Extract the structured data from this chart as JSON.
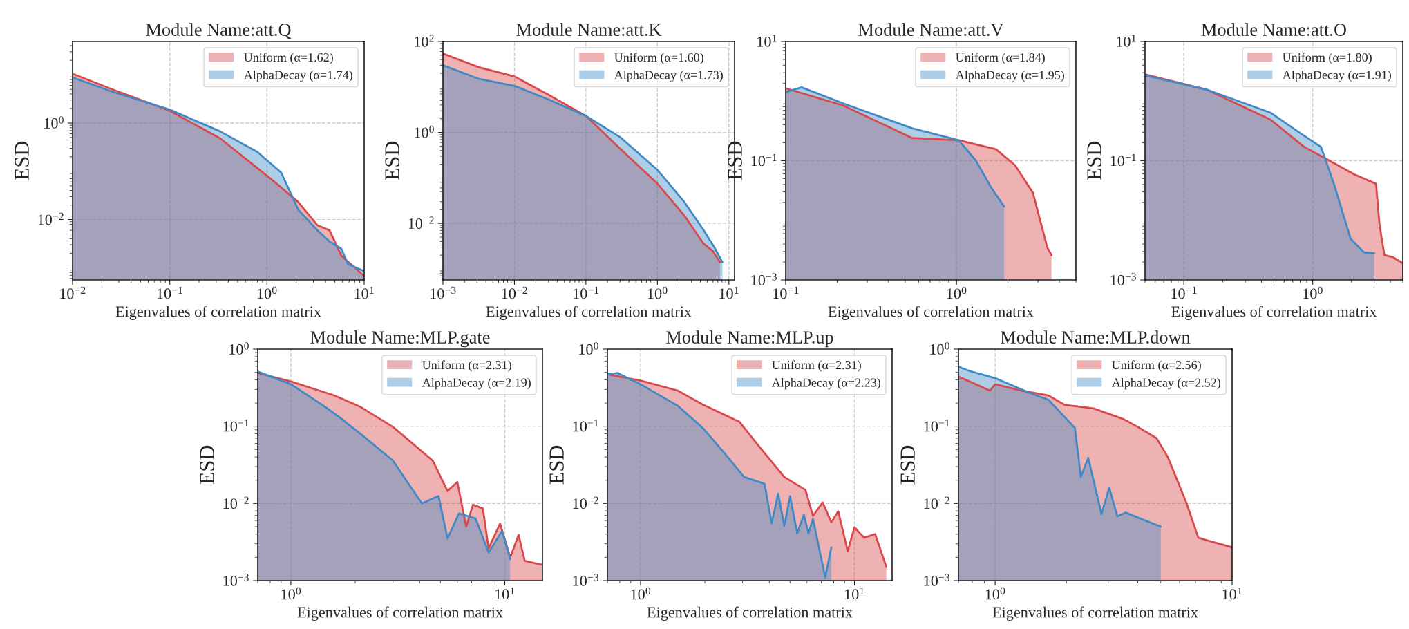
{
  "chart_data": [
    {
      "type": "area",
      "title": "Module Name:att.Q",
      "xlabel": "Eigenvalues of correlation matrix",
      "ylabel": "ESD",
      "log": "xy",
      "grid": true,
      "legend": "top right",
      "xlim": [
        0.01,
        10
      ],
      "ylim": [
        0.00056,
        49
      ],
      "xticks": [
        {
          "value": 0.01,
          "label": "10$^{−2}$"
        },
        {
          "value": 0.1,
          "label": "10$^{−1}$"
        },
        {
          "value": 1,
          "label": "10$^{0}$"
        },
        {
          "value": 10,
          "label": "10$^{1}$"
        }
      ],
      "yticks": [
        {
          "value": 1,
          "label": "10$^{0}$"
        },
        {
          "value": 0.01,
          "label": "10$^{−2}$"
        }
      ],
      "series": [
        {
          "name": "Uniform (α=1.62)",
          "color": "#d9484a",
          "x": [
            0.01,
            0.027,
            0.1,
            0.33,
            0.8,
            1.2,
            2.1,
            3.3,
            4.4,
            5.8,
            10
          ],
          "values": [
            10.5,
            4.8,
            1.8,
            0.48,
            0.116,
            0.06,
            0.023,
            0.0076,
            0.006,
            0.0018,
            0.00067
          ]
        },
        {
          "name": "AlphaDecay (α=1.74)",
          "color": "#3f8ac6",
          "x": [
            0.01,
            0.027,
            0.1,
            0.33,
            0.8,
            1.4,
            2.1,
            3.3,
            4.4,
            5.8,
            6.8,
            10
          ],
          "values": [
            8.8,
            4.3,
            1.9,
            0.67,
            0.25,
            0.094,
            0.016,
            0.006,
            0.0035,
            0.0025,
            0.0012,
            0.00085
          ]
        }
      ]
    },
    {
      "type": "area",
      "title": "Module Name:att.K",
      "xlabel": "Eigenvalues of correlation matrix",
      "ylabel": "ESD",
      "log": "xy",
      "grid": true,
      "legend": "top right",
      "xlim": [
        0.001,
        12
      ],
      "ylim": [
        0.00057,
        100
      ],
      "xticks": [
        {
          "value": 0.001,
          "label": "10$^{−3}$"
        },
        {
          "value": 0.01,
          "label": "10$^{−2}$"
        },
        {
          "value": 0.1,
          "label": "10$^{−1}$"
        },
        {
          "value": 1,
          "label": "10$^{0}$"
        },
        {
          "value": 10,
          "label": "10$^{1}$"
        }
      ],
      "yticks": [
        {
          "value": 100,
          "label": "10$^{2}$"
        },
        {
          "value": 1,
          "label": "10$^{0}$"
        },
        {
          "value": 0.01,
          "label": "10$^{−2}$"
        }
      ],
      "series": [
        {
          "name": "Uniform (α=1.60)",
          "color": "#d9484a",
          "x": [
            0.001,
            0.0032,
            0.01,
            0.031,
            0.1,
            0.3,
            1,
            2.4,
            4.4,
            5.9,
            7.5
          ],
          "values": [
            54,
            27,
            17,
            6.5,
            2.3,
            0.44,
            0.075,
            0.0146,
            0.0036,
            0.0025,
            0.0014
          ]
        },
        {
          "name": "AlphaDecay (α=1.73)",
          "color": "#3f8ac6",
          "x": [
            0.001,
            0.0032,
            0.01,
            0.031,
            0.1,
            0.3,
            1,
            2.4,
            4.4,
            6.4,
            8.1
          ],
          "values": [
            30,
            15,
            10.5,
            5.2,
            2.3,
            0.79,
            0.15,
            0.029,
            0.0072,
            0.0028,
            0.0014
          ]
        }
      ]
    },
    {
      "type": "area",
      "title": "Module Name:att.V",
      "xlabel": "Eigenvalues of correlation matrix",
      "ylabel": "ESD",
      "log": "xy",
      "grid": true,
      "legend": "top right",
      "xlim": [
        0.1,
        5
      ],
      "ylim": [
        0.001,
        10
      ],
      "xticks": [
        {
          "value": 0.1,
          "label": "10$^{−1}$"
        },
        {
          "value": 1,
          "label": "10$^{0}$"
        }
      ],
      "yticks": [
        {
          "value": 10,
          "label": "10$^{1}$"
        },
        {
          "value": 0.1,
          "label": "10$^{−1}$"
        },
        {
          "value": 0.001,
          "label": "10$^{−3}$"
        }
      ],
      "series": [
        {
          "name": "Uniform (α=1.84)",
          "color": "#d9484a",
          "x": [
            0.1,
            0.218,
            0.55,
            1.03,
            1.7,
            2.2,
            2.8,
            3.4,
            3.6
          ],
          "values": [
            1.64,
            0.84,
            0.24,
            0.22,
            0.156,
            0.084,
            0.029,
            0.0035,
            0.0026
          ]
        },
        {
          "name": "AlphaDecay (α=1.95)",
          "color": "#3f8ac6",
          "x": [
            0.1,
            0.124,
            0.218,
            0.55,
            1.03,
            1.3,
            1.6,
            1.9
          ],
          "values": [
            1.42,
            1.7,
            0.91,
            0.35,
            0.22,
            0.1,
            0.035,
            0.017
          ]
        }
      ]
    },
    {
      "type": "area",
      "title": "Module Name:att.O",
      "xlabel": "Eigenvalues of correlation matrix",
      "ylabel": "ESD",
      "log": "xy",
      "grid": true,
      "legend": "top right",
      "xlim": [
        0.05,
        5
      ],
      "ylim": [
        0.001,
        10
      ],
      "xticks": [
        {
          "value": 0.1,
          "label": "10$^{−1}$"
        },
        {
          "value": 1,
          "label": "10$^{0}$"
        }
      ],
      "yticks": [
        {
          "value": 10,
          "label": "10$^{1}$"
        },
        {
          "value": 0.1,
          "label": "10$^{−1}$"
        },
        {
          "value": 0.001,
          "label": "10$^{−3}$"
        }
      ],
      "series": [
        {
          "name": "Uniform (α=1.80)",
          "color": "#d9484a",
          "x": [
            0.05,
            0.15,
            0.47,
            0.86,
            1.25,
            2.1,
            3.1,
            3.3,
            3.6,
            4.2,
            5
          ],
          "values": [
            2.8,
            1.56,
            0.49,
            0.17,
            0.11,
            0.059,
            0.041,
            0.0084,
            0.0026,
            0.0024,
            0.0019
          ]
        },
        {
          "name": "AlphaDecay (α=1.91)",
          "color": "#3f8ac6",
          "x": [
            0.05,
            0.15,
            0.47,
            0.8,
            1.16,
            1.46,
            1.97,
            2.5,
            3.0
          ],
          "values": [
            2.7,
            1.56,
            0.64,
            0.29,
            0.17,
            0.041,
            0.0049,
            0.0029,
            0.0028
          ]
        }
      ]
    },
    {
      "type": "area",
      "title": "Module Name:MLP.gate",
      "xlabel": "Eigenvalues of correlation matrix",
      "ylabel": "ESD",
      "log": "xy",
      "grid": true,
      "legend": "top right",
      "xlim": [
        0.7,
        15
      ],
      "ylim": [
        0.001,
        1
      ],
      "xticks": [
        {
          "value": 1,
          "label": "10$^{0}$"
        },
        {
          "value": 10,
          "label": "10$^{1}$"
        }
      ],
      "yticks": [
        {
          "value": 1,
          "label": "10$^{0}$"
        },
        {
          "value": 0.1,
          "label": "10$^{−1}$"
        },
        {
          "value": 0.01,
          "label": "10$^{−2}$"
        },
        {
          "value": 0.001,
          "label": "10$^{−3}$"
        }
      ],
      "series": [
        {
          "name": "Uniform (α=2.31)",
          "color": "#d9484a",
          "x": [
            0.7,
            1,
            1.6,
            2.1,
            3.0,
            4.6,
            5.4,
            6.0,
            6.6,
            7.1,
            7.9,
            8.4,
            9.5,
            10.6,
            11.6,
            12.4,
            15
          ],
          "values": [
            0.49,
            0.38,
            0.25,
            0.18,
            0.098,
            0.036,
            0.0145,
            0.019,
            0.005,
            0.0096,
            0.0086,
            0.0026,
            0.0055,
            0.002,
            0.0039,
            0.0018,
            0.0016
          ]
        },
        {
          "name": "AlphaDecay (α=2.19)",
          "color": "#3f8ac6",
          "x": [
            0.7,
            1,
            1.4,
            1.65,
            2.1,
            3.0,
            3.5,
            4.1,
            4.9,
            5.4,
            6.1,
            7.3,
            8.4,
            9.7,
            10.6
          ],
          "values": [
            0.51,
            0.35,
            0.19,
            0.137,
            0.081,
            0.036,
            0.019,
            0.01,
            0.0125,
            0.0035,
            0.0074,
            0.0064,
            0.0023,
            0.0044,
            0.0019
          ]
        }
      ]
    },
    {
      "type": "area",
      "title": "Module Name:MLP.up",
      "xlabel": "Eigenvalues of correlation matrix",
      "ylabel": "ESD",
      "log": "xy",
      "grid": true,
      "legend": "top right",
      "xlim": [
        0.7,
        15
      ],
      "ylim": [
        0.001,
        1
      ],
      "xticks": [
        {
          "value": 1,
          "label": "10$^{0}$"
        },
        {
          "value": 10,
          "label": "10$^{1}$"
        }
      ],
      "yticks": [
        {
          "value": 1,
          "label": "10$^{0}$"
        },
        {
          "value": 0.1,
          "label": "10$^{−1}$"
        },
        {
          "value": 0.01,
          "label": "10$^{−2}$"
        },
        {
          "value": 0.001,
          "label": "10$^{−3}$"
        }
      ],
      "series": [
        {
          "name": "Uniform (α=2.31)",
          "color": "#d9484a",
          "x": [
            0.7,
            1,
            1.49,
            1.96,
            2.9,
            3.6,
            4.7,
            5.9,
            6.4,
            7.1,
            7.8,
            8.4,
            9.3,
            10,
            11.1,
            12.5,
            14.1
          ],
          "values": [
            0.47,
            0.39,
            0.29,
            0.19,
            0.114,
            0.054,
            0.022,
            0.015,
            0.0069,
            0.0103,
            0.0057,
            0.0079,
            0.0024,
            0.0049,
            0.0036,
            0.004,
            0.0015
          ]
        },
        {
          "name": "AlphaDecay (α=2.23)",
          "color": "#3f8ac6",
          "x": [
            0.7,
            0.78,
            1,
            1.49,
            1.96,
            2.45,
            3.05,
            3.8,
            4.1,
            4.4,
            4.7,
            5.0,
            5.4,
            5.8,
            6.1,
            6.4,
            7.3,
            7.8
          ],
          "values": [
            0.47,
            0.49,
            0.35,
            0.185,
            0.094,
            0.046,
            0.022,
            0.018,
            0.0055,
            0.0134,
            0.0051,
            0.0124,
            0.0041,
            0.0071,
            0.0041,
            0.0063,
            0.0011,
            0.0027
          ]
        }
      ]
    },
    {
      "type": "area",
      "title": "Module Name:MLP.down",
      "xlabel": "Eigenvalues of correlation matrix",
      "ylabel": "ESD",
      "log": "xy",
      "grid": true,
      "legend": "top right",
      "xlim": [
        0.7,
        10
      ],
      "ylim": [
        0.001,
        1
      ],
      "xticks": [
        {
          "value": 1,
          "label": "10$^{0}$"
        },
        {
          "value": 10,
          "label": "10$^{1}$"
        }
      ],
      "yticks": [
        {
          "value": 1,
          "label": "10$^{0}$"
        },
        {
          "value": 0.1,
          "label": "10$^{−1}$"
        },
        {
          "value": 0.01,
          "label": "10$^{−2}$"
        },
        {
          "value": 0.001,
          "label": "10$^{−3}$"
        }
      ],
      "series": [
        {
          "name": "Uniform (α=2.56)",
          "color": "#d9484a",
          "x": [
            0.7,
            0.95,
            1,
            1.29,
            1.68,
            1.96,
            2.6,
            3.45,
            4.0,
            4.8,
            5.35,
            6.4,
            7.2,
            7.9,
            10
          ],
          "values": [
            0.44,
            0.29,
            0.35,
            0.29,
            0.25,
            0.19,
            0.17,
            0.125,
            0.098,
            0.07,
            0.04,
            0.0104,
            0.0036,
            0.0033,
            0.0027
          ]
        },
        {
          "name": "AlphaDecay (α=2.52)",
          "color": "#3f8ac6",
          "x": [
            0.7,
            0.78,
            1,
            1.4,
            1.68,
            2.17,
            2.3,
            2.47,
            2.81,
            3.03,
            3.28,
            3.55,
            5.0
          ],
          "values": [
            0.59,
            0.52,
            0.42,
            0.27,
            0.22,
            0.095,
            0.022,
            0.039,
            0.0073,
            0.016,
            0.0068,
            0.0076,
            0.005
          ]
        }
      ]
    }
  ]
}
